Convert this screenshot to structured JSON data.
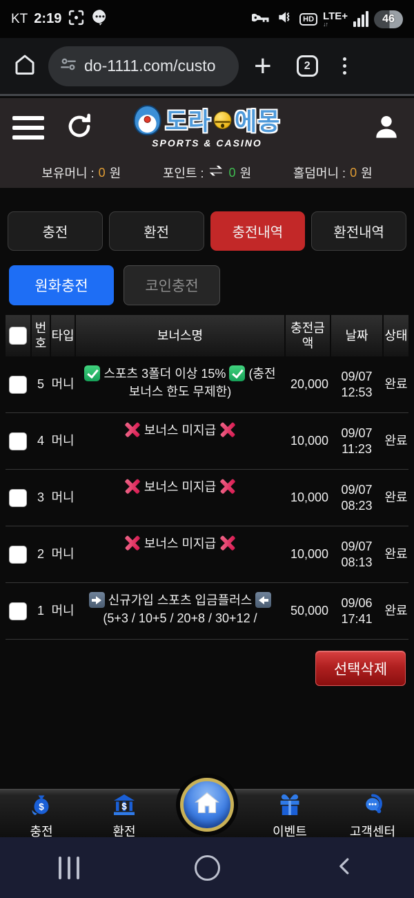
{
  "status_bar": {
    "carrier": "KT",
    "time": "2:19",
    "battery": "46",
    "network": "LTE+",
    "hd": "HD"
  },
  "browser": {
    "url": "do-1111.com/custo",
    "tab_count": "2"
  },
  "site_header": {
    "logo_left": "도라",
    "logo_right": "에몽",
    "logo_sub": "SPORTS & CASINO"
  },
  "wallet": {
    "items": [
      {
        "label": "보유머니 :",
        "value": "0",
        "unit": "원"
      },
      {
        "label": "포인트 :",
        "value": "0",
        "unit": "원"
      },
      {
        "label": "홀덤머니 :",
        "value": "0",
        "unit": "원"
      }
    ]
  },
  "tabs": [
    {
      "label": "충전"
    },
    {
      "label": "환전"
    },
    {
      "label": "충전내역"
    },
    {
      "label": "환전내역"
    }
  ],
  "subtabs": [
    {
      "label": "원화충전"
    },
    {
      "label": "코인충전"
    }
  ],
  "table": {
    "headers": [
      "번호",
      "타입",
      "보너스명",
      "충전금액",
      "날짜",
      "상태"
    ],
    "rows": [
      {
        "no": "5",
        "type": "머니",
        "bonus": [
          {
            "icon": "green-check"
          },
          {
            "text": "스포츠 3폴더 이상 15%"
          },
          {
            "icon": "green-check"
          },
          {
            "text": "(충전 보너스 한도 무제한)"
          }
        ],
        "amount": "20,000",
        "date": "09/07",
        "time": "12:53",
        "status": "완료"
      },
      {
        "no": "4",
        "type": "머니",
        "bonus": [
          {
            "icon": "red-x"
          },
          {
            "text": "보너스 미지급"
          },
          {
            "icon": "red-x"
          }
        ],
        "amount": "10,000",
        "date": "09/07",
        "time": "11:23",
        "status": "완료"
      },
      {
        "no": "3",
        "type": "머니",
        "bonus": [
          {
            "icon": "red-x"
          },
          {
            "text": "보너스 미지급"
          },
          {
            "icon": "red-x"
          }
        ],
        "amount": "10,000",
        "date": "09/07",
        "time": "08:23",
        "status": "완료"
      },
      {
        "no": "2",
        "type": "머니",
        "bonus": [
          {
            "icon": "red-x"
          },
          {
            "text": "보너스 미지급"
          },
          {
            "icon": "red-x"
          }
        ],
        "amount": "10,000",
        "date": "09/07",
        "time": "08:13",
        "status": "완료"
      },
      {
        "no": "1",
        "type": "머니",
        "bonus": [
          {
            "icon": "arrow-right"
          },
          {
            "text": "신규가입 스포츠 입금플러스"
          },
          {
            "icon": "arrow-left"
          },
          {
            "text": "(5+3 / 10+5 / 20+8 / 30+12 /"
          }
        ],
        "amount": "50,000",
        "date": "09/06",
        "time": "17:41",
        "status": "완료"
      }
    ]
  },
  "actions": {
    "delete_label": "선택삭제"
  },
  "bottom_nav": {
    "items": [
      {
        "label": "충전",
        "icon": "money-bag"
      },
      {
        "label": "환전",
        "icon": "bank"
      },
      {
        "label": "",
        "icon": "home"
      },
      {
        "label": "이벤트",
        "icon": "gift"
      },
      {
        "label": "고객센터",
        "icon": "headset"
      }
    ]
  },
  "colors": {
    "active_tab_red": "#c22828",
    "active_subtab_blue": "#1e6ef5",
    "delete_red": "#b02020",
    "nav_icon_blue": "#1a5fd6",
    "value_orange": "#e09c34",
    "value_green": "#3fbc50"
  }
}
